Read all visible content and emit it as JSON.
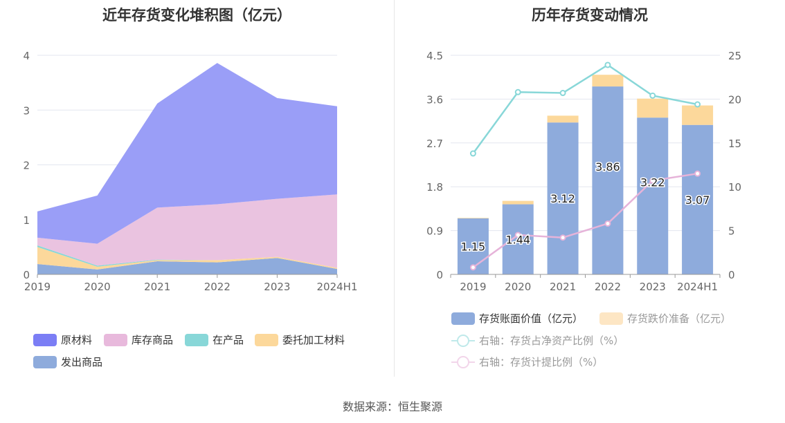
{
  "source": "数据来源：恒生聚源",
  "charts": [
    {
      "title": "近年存货变化堆积图（亿元）",
      "legend": [
        "原材料",
        "库存商品",
        "在产品",
        "委托加工材料",
        "发出商品"
      ],
      "chart_data": {
        "type": "area",
        "stacked": true,
        "title": "近年存货变化堆积图（亿元）",
        "categories": [
          "2019",
          "2020",
          "2021",
          "2022",
          "2023",
          "2024H1"
        ],
        "ylim": [
          0,
          4
        ],
        "yticks": [
          "0",
          "1",
          "2",
          "3",
          "4"
        ],
        "series": [
          {
            "name": "发出商品",
            "color": "#8eabdc",
            "values": [
              0.19,
              0.09,
              0.24,
              0.22,
              0.3,
              0.1
            ]
          },
          {
            "name": "委托加工材料",
            "color": "#fcd89b",
            "values": [
              0.31,
              0.05,
              0.02,
              0.04,
              0.02,
              0.02
            ]
          },
          {
            "name": "在产品",
            "color": "#88d7d8",
            "values": [
              0.03,
              0.02,
              0.01,
              0.0,
              0.0,
              0.0
            ]
          },
          {
            "name": "库存商品",
            "color": "#eac3e0",
            "values": [
              0.14,
              0.4,
              0.95,
              1.02,
              1.06,
              1.34
            ]
          },
          {
            "name": "原材料",
            "color": "#9a9ef7",
            "values": [
              0.48,
              0.88,
              1.9,
              2.58,
              1.84,
              1.61
            ]
          }
        ]
      }
    },
    {
      "title": "历年存货变动情况",
      "legend": {
        "bar1": "存货账面价值（亿元）",
        "bar2": "存货跌价准备（亿元）",
        "line1": "右轴：存货占净资产比例（%）",
        "line2": "右轴：存货计提比例（%）"
      },
      "chart_data": {
        "type": "bar",
        "stacked": true,
        "title": "历年存货变动情况",
        "categories": [
          "2019",
          "2020",
          "2021",
          "2022",
          "2023",
          "2024H1"
        ],
        "ylim": [
          0,
          4.5
        ],
        "yticks": [
          "0",
          "0.9",
          "1.8",
          "2.7",
          "3.6",
          "4.5"
        ],
        "y2lim": [
          0,
          25
        ],
        "y2ticks": [
          "0",
          "5",
          "10",
          "15",
          "20",
          "25"
        ],
        "series": [
          {
            "name": "存货账面价值（亿元）",
            "type": "bar",
            "color": "#8eabdc",
            "values": [
              1.15,
              1.44,
              3.12,
              3.86,
              3.22,
              3.07
            ],
            "labels": [
              "1.15",
              "1.44",
              "3.12",
              "3.86",
              "3.22",
              "3.07"
            ]
          },
          {
            "name": "存货跌价准备（亿元）",
            "type": "bar",
            "color": "#fcd89b",
            "values": [
              0.01,
              0.07,
              0.14,
              0.24,
              0.39,
              0.4
            ]
          },
          {
            "name": "右轴：存货占净资产比例（%）",
            "type": "line",
            "axis": "right",
            "color": "#88d7d8",
            "values": [
              13.8,
              20.8,
              20.7,
              23.9,
              20.4,
              19.4
            ]
          },
          {
            "name": "右轴：存货计提比例（%）",
            "type": "line",
            "axis": "right",
            "color": "#e6b3d9",
            "values": [
              0.8,
              4.5,
              4.2,
              5.8,
              10.7,
              11.5
            ]
          }
        ]
      }
    }
  ]
}
